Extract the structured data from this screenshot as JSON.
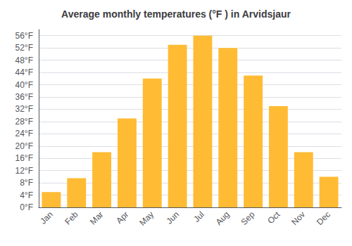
{
  "chart_data": {
    "type": "bar",
    "title": "Average monthly temperatures (°F ) in Arvidsjaur",
    "categories": [
      "Jan",
      "Feb",
      "Mar",
      "Apr",
      "May",
      "Jun",
      "Jul",
      "Aug",
      "Sep",
      "Oct",
      "Nov",
      "Dec"
    ],
    "values": [
      5,
      9.5,
      18,
      29,
      42,
      53,
      56,
      52,
      43,
      33,
      18,
      10
    ],
    "color": "#FFBB33",
    "ylim": [
      0,
      58
    ],
    "yticks": [
      {
        "value": 0,
        "label": "0°F"
      },
      {
        "value": 4,
        "label": "4°F"
      },
      {
        "value": 8,
        "label": "8°F"
      },
      {
        "value": 12,
        "label": "12°F"
      },
      {
        "value": 16,
        "label": "16°F"
      },
      {
        "value": 20,
        "label": "20°F"
      },
      {
        "value": 24,
        "label": "24°F"
      },
      {
        "value": 28,
        "label": "28°F"
      },
      {
        "value": 32,
        "label": "32°F"
      },
      {
        "value": 36,
        "label": "36°F"
      },
      {
        "value": 40,
        "label": "40°F"
      },
      {
        "value": 44,
        "label": "44°F"
      },
      {
        "value": 48,
        "label": "48°F"
      },
      {
        "value": 52,
        "label": "52°F"
      },
      {
        "value": 56,
        "label": "56°F"
      }
    ],
    "grid": true
  }
}
